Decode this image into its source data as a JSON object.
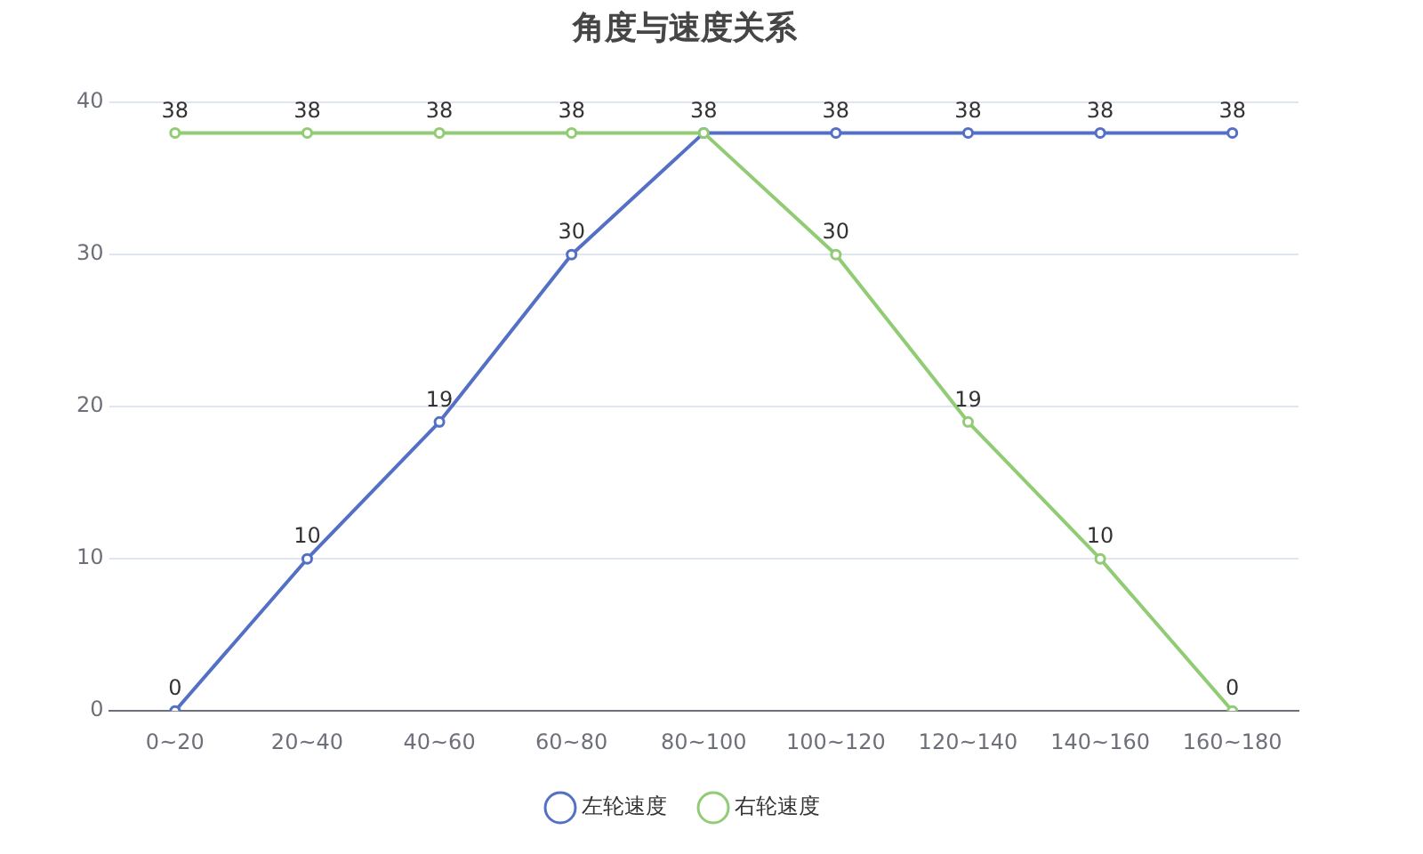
{
  "chart_data": {
    "type": "line",
    "title": "角度与速度关系",
    "categories": [
      "0~20",
      "20~40",
      "40~60",
      "60~80",
      "80~100",
      "100~120",
      "120~140",
      "140~160",
      "160~180"
    ],
    "series": [
      {
        "name": "左轮速度",
        "color": "#5470c6",
        "values": [
          0,
          10,
          19,
          30,
          38,
          38,
          38,
          38,
          38
        ]
      },
      {
        "name": "右轮速度",
        "color": "#91cc75",
        "values": [
          38,
          38,
          38,
          38,
          38,
          30,
          19,
          10,
          0
        ],
        "value_labels": [
          "38",
          "38",
          "38",
          "38",
          null,
          "30",
          "19",
          "10",
          "0"
        ]
      }
    ],
    "ylim": [
      0,
      40
    ],
    "yticks": [
      0,
      10,
      20,
      30,
      40
    ],
    "grid": "y",
    "legend": "bottom",
    "data_labels": true,
    "marker": "circle",
    "line_style": "solid"
  }
}
